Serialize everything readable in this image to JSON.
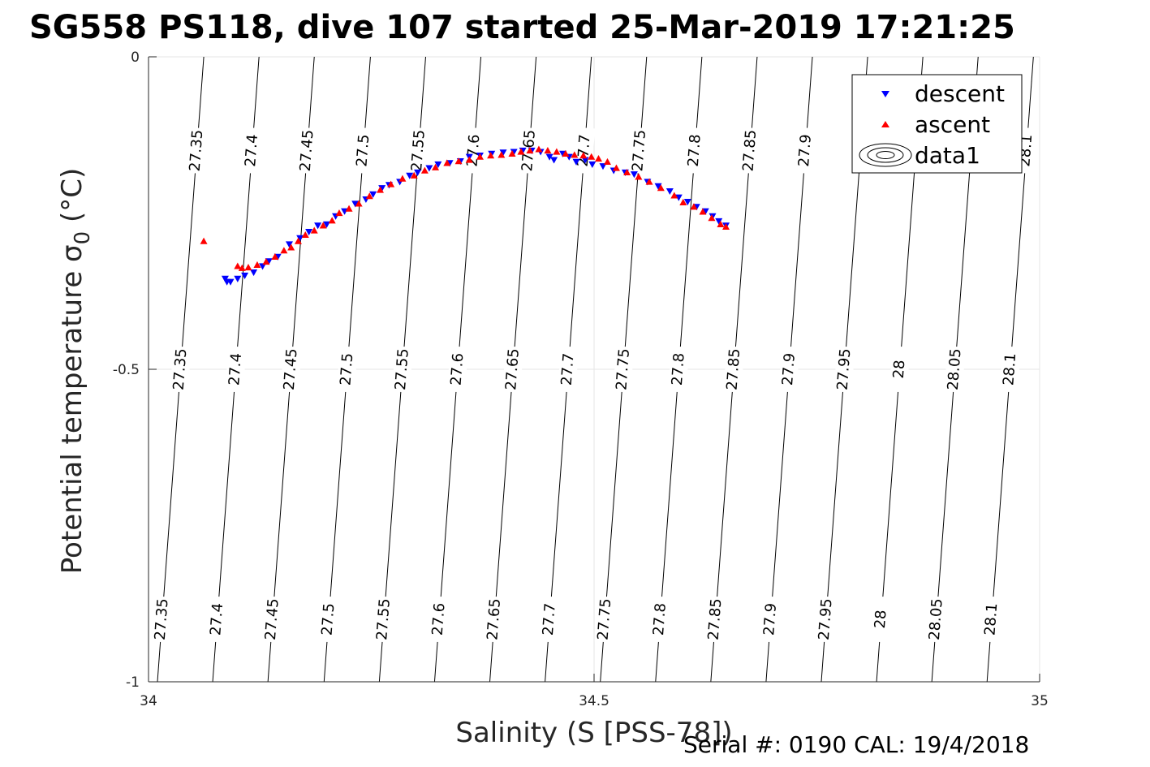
{
  "chart_data": {
    "type": "scatter",
    "title": "SG558 PS118, dive 107 started 25-Mar-2019 17:21:25",
    "xlabel": "Salinity (S [PSS-78])",
    "ylabel": "Potential temperature",
    "ylabel_symbol": "σ",
    "ylabel_sub": "0",
    "ylabel_unit": " (°C)",
    "xlim": [
      34,
      35
    ],
    "ylim": [
      -1,
      0
    ],
    "x_ticks": [
      34,
      34.5,
      35
    ],
    "x_tick_labels": [
      "34",
      "34.5",
      "35"
    ],
    "y_ticks": [
      0,
      -0.5,
      -1
    ],
    "y_tick_labels": [
      "0",
      "-0.5",
      "-1"
    ],
    "grid": true,
    "legend_position": "top-right",
    "footer": "Serial #: 0190  CAL: 19/4/2018",
    "series": [
      {
        "name": "descent",
        "marker": "triangle-down",
        "color": "#0000ff",
        "points": [
          [
            34.086,
            -0.355
          ],
          [
            34.088,
            -0.36
          ],
          [
            34.092,
            -0.36
          ],
          [
            34.1,
            -0.355
          ],
          [
            34.108,
            -0.35
          ],
          [
            34.118,
            -0.345
          ],
          [
            34.128,
            -0.335
          ],
          [
            34.135,
            -0.327
          ],
          [
            34.145,
            -0.32
          ],
          [
            34.158,
            -0.3
          ],
          [
            34.17,
            -0.29
          ],
          [
            34.18,
            -0.28
          ],
          [
            34.19,
            -0.27
          ],
          [
            34.2,
            -0.268
          ],
          [
            34.21,
            -0.255
          ],
          [
            34.22,
            -0.247
          ],
          [
            34.232,
            -0.235
          ],
          [
            34.244,
            -0.228
          ],
          [
            34.252,
            -0.22
          ],
          [
            34.262,
            -0.21
          ],
          [
            34.27,
            -0.205
          ],
          [
            34.282,
            -0.2
          ],
          [
            34.293,
            -0.19
          ],
          [
            34.302,
            -0.185
          ],
          [
            34.315,
            -0.178
          ],
          [
            34.325,
            -0.172
          ],
          [
            34.338,
            -0.17
          ],
          [
            34.35,
            -0.167
          ],
          [
            34.36,
            -0.16
          ],
          [
            34.372,
            -0.158
          ],
          [
            34.385,
            -0.155
          ],
          [
            34.398,
            -0.153
          ],
          [
            34.41,
            -0.152
          ],
          [
            34.42,
            -0.15
          ],
          [
            34.43,
            -0.15
          ],
          [
            34.44,
            -0.152
          ],
          [
            34.45,
            -0.16
          ],
          [
            34.455,
            -0.165
          ],
          [
            34.465,
            -0.155
          ],
          [
            34.472,
            -0.16
          ],
          [
            34.48,
            -0.168
          ],
          [
            34.49,
            -0.165
          ],
          [
            34.498,
            -0.172
          ],
          [
            34.51,
            -0.175
          ],
          [
            34.522,
            -0.182
          ],
          [
            34.535,
            -0.185
          ],
          [
            34.545,
            -0.188
          ],
          [
            34.56,
            -0.2
          ],
          [
            34.572,
            -0.207
          ],
          [
            34.585,
            -0.215
          ],
          [
            34.595,
            -0.225
          ],
          [
            34.605,
            -0.232
          ],
          [
            34.615,
            -0.24
          ],
          [
            34.625,
            -0.247
          ],
          [
            34.633,
            -0.255
          ],
          [
            34.64,
            -0.263
          ],
          [
            34.648,
            -0.27
          ]
        ]
      },
      {
        "name": "ascent",
        "marker": "triangle-up",
        "color": "#ff0000",
        "points": [
          [
            34.062,
            -0.295
          ],
          [
            34.1,
            -0.335
          ],
          [
            34.105,
            -0.338
          ],
          [
            34.112,
            -0.337
          ],
          [
            34.122,
            -0.333
          ],
          [
            34.132,
            -0.328
          ],
          [
            34.142,
            -0.32
          ],
          [
            34.152,
            -0.31
          ],
          [
            34.16,
            -0.305
          ],
          [
            34.168,
            -0.295
          ],
          [
            34.176,
            -0.285
          ],
          [
            34.186,
            -0.278
          ],
          [
            34.196,
            -0.27
          ],
          [
            34.206,
            -0.262
          ],
          [
            34.214,
            -0.25
          ],
          [
            34.225,
            -0.243
          ],
          [
            34.236,
            -0.235
          ],
          [
            34.248,
            -0.223
          ],
          [
            34.26,
            -0.213
          ],
          [
            34.272,
            -0.204
          ],
          [
            34.285,
            -0.195
          ],
          [
            34.298,
            -0.19
          ],
          [
            34.31,
            -0.182
          ],
          [
            34.322,
            -0.177
          ],
          [
            34.335,
            -0.17
          ],
          [
            34.348,
            -0.167
          ],
          [
            34.36,
            -0.165
          ],
          [
            34.372,
            -0.16
          ],
          [
            34.384,
            -0.158
          ],
          [
            34.396,
            -0.157
          ],
          [
            34.408,
            -0.155
          ],
          [
            34.418,
            -0.152
          ],
          [
            34.428,
            -0.15
          ],
          [
            34.438,
            -0.148
          ],
          [
            34.448,
            -0.15
          ],
          [
            34.458,
            -0.152
          ],
          [
            34.468,
            -0.155
          ],
          [
            34.478,
            -0.157
          ],
          [
            34.488,
            -0.158
          ],
          [
            34.497,
            -0.16
          ],
          [
            34.505,
            -0.163
          ],
          [
            34.515,
            -0.168
          ],
          [
            34.525,
            -0.178
          ],
          [
            34.537,
            -0.185
          ],
          [
            34.55,
            -0.192
          ],
          [
            34.562,
            -0.2
          ],
          [
            34.575,
            -0.21
          ],
          [
            34.59,
            -0.222
          ],
          [
            34.6,
            -0.233
          ],
          [
            34.612,
            -0.24
          ],
          [
            34.622,
            -0.248
          ],
          [
            34.632,
            -0.258
          ],
          [
            34.642,
            -0.268
          ],
          [
            34.648,
            -0.272
          ]
        ]
      },
      {
        "name": "data1",
        "marker": "contour",
        "color": "#000000",
        "points": []
      }
    ],
    "isopycnals": [
      {
        "label": "27.35",
        "x_top": 34.062,
        "x_bottom": 34.01,
        "label_y": [
          -0.15,
          -0.5,
          -0.9
        ]
      },
      {
        "label": "27.4",
        "x_top": 34.124,
        "x_bottom": 34.072,
        "label_y": [
          -0.15,
          -0.5,
          -0.9
        ]
      },
      {
        "label": "27.45",
        "x_top": 34.186,
        "x_bottom": 34.134,
        "label_y": [
          -0.15,
          -0.5,
          -0.9
        ]
      },
      {
        "label": "27.5",
        "x_top": 34.249,
        "x_bottom": 34.197,
        "label_y": [
          -0.15,
          -0.5,
          -0.9
        ]
      },
      {
        "label": "27.55",
        "x_top": 34.311,
        "x_bottom": 34.259,
        "label_y": [
          -0.15,
          -0.5,
          -0.9
        ]
      },
      {
        "label": "27.6",
        "x_top": 34.373,
        "x_bottom": 34.321,
        "label_y": [
          -0.15,
          -0.5,
          -0.9
        ]
      },
      {
        "label": "27.65",
        "x_top": 34.435,
        "x_bottom": 34.383,
        "label_y": [
          -0.15,
          -0.5,
          -0.9
        ]
      },
      {
        "label": "27.7",
        "x_top": 34.497,
        "x_bottom": 34.445,
        "label_y": [
          -0.15,
          -0.5,
          -0.9
        ]
      },
      {
        "label": "27.75",
        "x_top": 34.559,
        "x_bottom": 34.507,
        "label_y": [
          -0.15,
          -0.5,
          -0.9
        ]
      },
      {
        "label": "27.8",
        "x_top": 34.621,
        "x_bottom": 34.569,
        "label_y": [
          -0.15,
          -0.5,
          -0.9
        ]
      },
      {
        "label": "27.85",
        "x_top": 34.683,
        "x_bottom": 34.631,
        "label_y": [
          -0.15,
          -0.5,
          -0.9
        ]
      },
      {
        "label": "27.9",
        "x_top": 34.745,
        "x_bottom": 34.693,
        "label_y": [
          -0.15,
          -0.5,
          -0.9
        ]
      },
      {
        "label": "27.95",
        "x_top": 34.807,
        "x_bottom": 34.755,
        "label_y": [
          -0.5,
          -0.9
        ]
      },
      {
        "label": "28",
        "x_top": 34.869,
        "x_bottom": 34.817,
        "label_y": [
          -0.5,
          -0.9
        ]
      },
      {
        "label": "28.05",
        "x_top": 34.931,
        "x_bottom": 34.879,
        "label_y": [
          -0.5,
          -0.9
        ]
      },
      {
        "label": "28.1",
        "x_top": 34.993,
        "x_bottom": 34.941,
        "label_y": [
          -0.15,
          -0.5,
          -0.9
        ]
      }
    ]
  }
}
